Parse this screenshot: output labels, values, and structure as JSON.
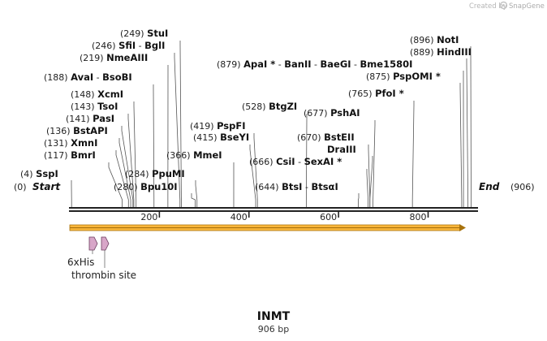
{
  "credit": {
    "created_by": "Created by",
    "brand": "SnapGene"
  },
  "map": {
    "name": "INMT",
    "length_label": "906 bp",
    "total_bp": 906,
    "start_label": "Start",
    "end_label": "End",
    "start_pos": "(0)",
    "end_pos": "(906)",
    "ticks": [
      200,
      400,
      600,
      800
    ]
  },
  "sites": [
    {
      "pos": "(4)",
      "bp": 4,
      "parts": [
        "SspI"
      ]
    },
    {
      "pos": "(117)",
      "bp": 117,
      "parts": [
        "BmrI"
      ]
    },
    {
      "pos": "(131)",
      "bp": 131,
      "parts": [
        "XmnI"
      ]
    },
    {
      "pos": "(136)",
      "bp": 136,
      "parts": [
        "BstAPI"
      ]
    },
    {
      "pos": "(141)",
      "bp": 141,
      "parts": [
        "PasI"
      ]
    },
    {
      "pos": "(143)",
      "bp": 143,
      "parts": [
        "TsoI"
      ]
    },
    {
      "pos": "(148)",
      "bp": 148,
      "parts": [
        "XcmI"
      ]
    },
    {
      "pos": "(188)",
      "bp": 188,
      "parts": [
        "AvaI",
        "BsoBI"
      ]
    },
    {
      "pos": "(219)",
      "bp": 219,
      "parts": [
        "NmeAIII"
      ]
    },
    {
      "pos": "(246)",
      "bp": 246,
      "parts": [
        "SfiI",
        "BglI"
      ]
    },
    {
      "pos": "(249)",
      "bp": 249,
      "parts": [
        "StuI"
      ]
    },
    {
      "pos": "(280)",
      "bp": 280,
      "parts": [
        "Bpu10I"
      ]
    },
    {
      "pos": "(284)",
      "bp": 284,
      "parts": [
        "PpuMI"
      ]
    },
    {
      "pos": "(366)",
      "bp": 366,
      "parts": [
        "MmeI"
      ]
    },
    {
      "pos": "(415)",
      "bp": 415,
      "parts": [
        "BseYI"
      ]
    },
    {
      "pos": "(419)",
      "bp": 419,
      "parts": [
        "PspFI"
      ]
    },
    {
      "pos": "(528)",
      "bp": 528,
      "parts": [
        "BtgZI"
      ]
    },
    {
      "pos": "(644)",
      "bp": 644,
      "parts": [
        "BtsI",
        "BtsαI"
      ]
    },
    {
      "pos": "(666)",
      "bp": 666,
      "parts": [
        "CsiI",
        "SexAI *"
      ]
    },
    {
      "pos": "(670)",
      "bp": 670,
      "parts": [
        "BstEII"
      ]
    },
    {
      "pos": "",
      "bp": 670,
      "parts": [
        "DraIII"
      ]
    },
    {
      "pos": "(677)",
      "bp": 677,
      "parts": [
        "PshAI"
      ]
    },
    {
      "pos": "(765)",
      "bp": 765,
      "parts": [
        "PfoI *"
      ]
    },
    {
      "pos": "(875)",
      "bp": 875,
      "parts": [
        "PspOMI *"
      ]
    },
    {
      "pos": "(879)",
      "bp": 879,
      "parts": [
        "ApaI *",
        "BanII",
        "BaeGI",
        "Bme1580I"
      ]
    },
    {
      "pos": "(889)",
      "bp": 889,
      "parts": [
        "HindIII"
      ]
    },
    {
      "pos": "(896)",
      "bp": 896,
      "parts": [
        "NotI"
      ]
    }
  ],
  "features": [
    {
      "label": "6xHis"
    },
    {
      "label": "thrombin site"
    }
  ],
  "colors": {
    "orf_fill": "#fdb93c",
    "orf_edge": "#a8720c",
    "feature_fill": "#d8a6c8",
    "feature_edge": "#6b3c5e",
    "backbone": "#222222"
  }
}
